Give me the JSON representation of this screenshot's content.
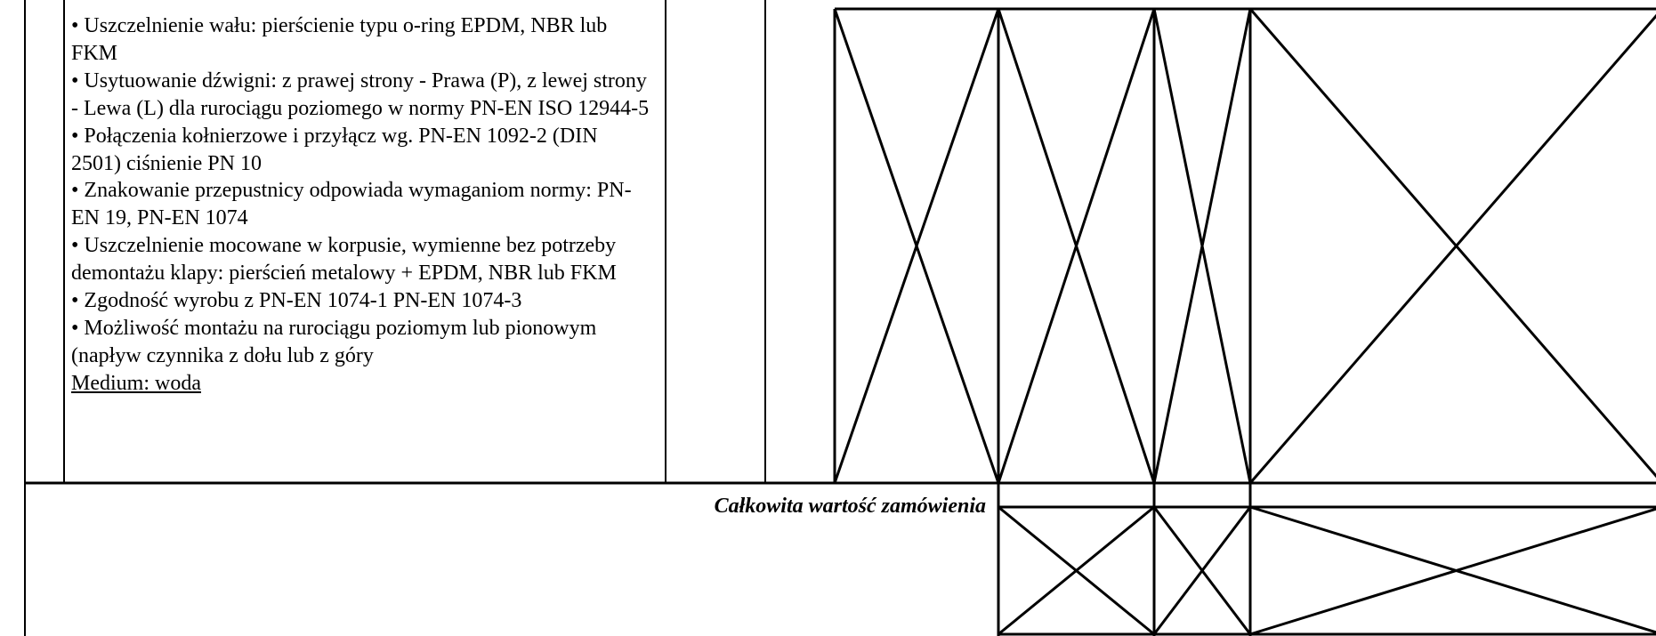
{
  "items": [
    "• Uszczelnienie wału: pierścienie typu o-ring EPDM, NBR lub FKM",
    "• Usytuowanie dźwigni: z prawej strony - Prawa (P), z lewej strony - Lewa (L) dla rurociągu poziomego w normy PN-EN ISO 12944-5",
    "• Połączenia kołnierzowe i przyłącz wg. PN-EN 1092-2 (DIN 2501) ciśnienie PN 10",
    "• Znakowanie przepustnicy odpowiada wymaganiom normy: PN-EN 19, PN-EN 1074",
    "• Uszczelnienie mocowane w korpusie, wymienne bez potrzeby demontażu klapy: pierścień metalowy + EPDM, NBR lub FKM",
    "• Zgodność wyrobu z PN-EN 1074-1 PN-EN 1074-3",
    "• Możliwość montażu na rurociągu poziomym lub pionowym (napływ czynnika z dołu lub z góry"
  ],
  "medium": "Medium: woda",
  "total_label": "Całkowita wartość zamówienia"
}
